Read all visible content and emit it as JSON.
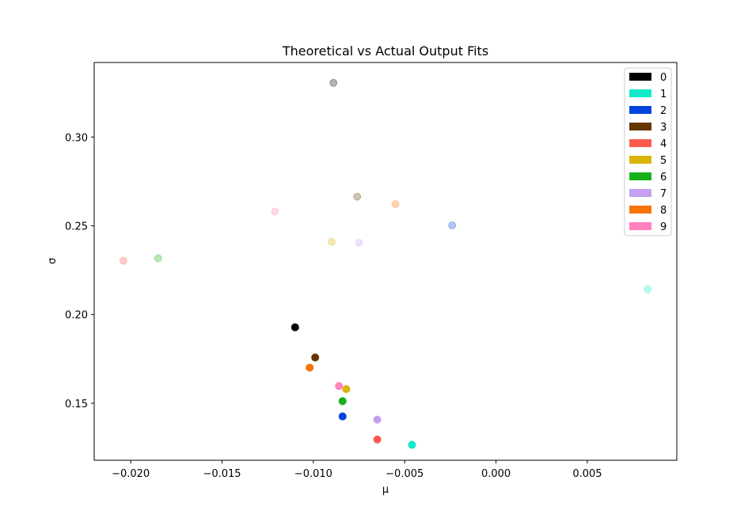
{
  "chart_data": {
    "type": "scatter",
    "title": "Theoretical vs Actual Output Fits",
    "xlabel": "μ",
    "ylabel": "σ",
    "xlim": [
      -0.022,
      0.0099
    ],
    "ylim": [
      0.1179,
      0.342
    ],
    "xticks": [
      -0.02,
      -0.015,
      -0.01,
      -0.005,
      0.0,
      0.005
    ],
    "xtick_labels": [
      "−0.020",
      "−0.015",
      "−0.010",
      "−0.005",
      "0.000",
      "0.005"
    ],
    "yticks": [
      0.15,
      0.2,
      0.25,
      0.3
    ],
    "ytick_labels": [
      "0.15",
      "0.20",
      "0.25",
      "0.30"
    ],
    "grid": false,
    "legend_position": "top-right",
    "legend": [
      {
        "label": "0",
        "color": "#000000"
      },
      {
        "label": "1",
        "color": "#13eac9"
      },
      {
        "label": "2",
        "color": "#0343df"
      },
      {
        "label": "3",
        "color": "#653700"
      },
      {
        "label": "4",
        "color": "#fc5a50"
      },
      {
        "label": "5",
        "color": "#dbb40c"
      },
      {
        "label": "6",
        "color": "#15b01a"
      },
      {
        "label": "7",
        "color": "#c79fef"
      },
      {
        "label": "8",
        "color": "#f97306"
      },
      {
        "label": "9",
        "color": "#ff81c0"
      }
    ],
    "series": [
      {
        "kind": "actual",
        "opacity": 1.0,
        "points": [
          {
            "class": "0",
            "x": -0.011,
            "y": 0.1928
          },
          {
            "class": "1",
            "x": -0.0046,
            "y": 0.1266
          },
          {
            "class": "2",
            "x": -0.0084,
            "y": 0.1426
          },
          {
            "class": "3",
            "x": -0.0099,
            "y": 0.1758
          },
          {
            "class": "4",
            "x": -0.0065,
            "y": 0.1296
          },
          {
            "class": "5",
            "x": -0.0082,
            "y": 0.158
          },
          {
            "class": "6",
            "x": -0.0084,
            "y": 0.1512
          },
          {
            "class": "7",
            "x": -0.0065,
            "y": 0.1408
          },
          {
            "class": "8",
            "x": -0.0102,
            "y": 0.1701
          },
          {
            "class": "9",
            "x": -0.0086,
            "y": 0.1597
          }
        ]
      },
      {
        "kind": "theoretical",
        "opacity": 0.3,
        "points": [
          {
            "class": "0",
            "x": -0.0089,
            "y": 0.3305
          },
          {
            "class": "1",
            "x": 0.0083,
            "y": 0.2142
          },
          {
            "class": "2",
            "x": -0.0024,
            "y": 0.2502
          },
          {
            "class": "3",
            "x": -0.0076,
            "y": 0.2664
          },
          {
            "class": "4",
            "x": -0.0204,
            "y": 0.2303
          },
          {
            "class": "5",
            "x": -0.009,
            "y": 0.241
          },
          {
            "class": "6",
            "x": -0.0185,
            "y": 0.2317
          },
          {
            "class": "7",
            "x": -0.0075,
            "y": 0.2405
          },
          {
            "class": "8",
            "x": -0.0055,
            "y": 0.2622
          },
          {
            "class": "9",
            "x": -0.0121,
            "y": 0.2581
          }
        ]
      }
    ]
  }
}
